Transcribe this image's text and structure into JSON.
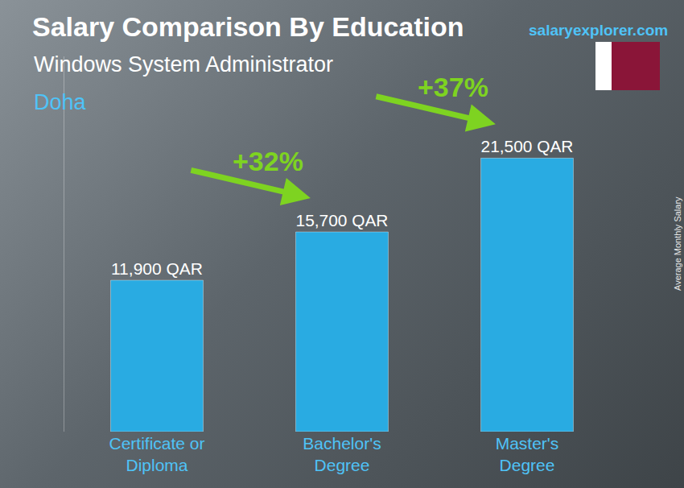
{
  "chart_data": {
    "type": "bar",
    "title": "Salary Comparison By Education",
    "subtitle": "Windows System Administrator",
    "location": "Doha",
    "source": "salaryexplorer.com",
    "y_label": "Average Monthly Salary",
    "categories": [
      "Certificate or Diploma",
      "Bachelor's Degree",
      "Master's Degree"
    ],
    "values": [
      11900,
      15700,
      21500
    ],
    "value_labels": [
      "11,900 QAR",
      "15,700 QAR",
      "21,500 QAR"
    ],
    "color": "#29abe2",
    "annotations": [
      "+32%",
      "+37%"
    ],
    "ylim": [
      0,
      29500
    ],
    "tick_labels": "x",
    "data_labels": true,
    "grid": false
  }
}
